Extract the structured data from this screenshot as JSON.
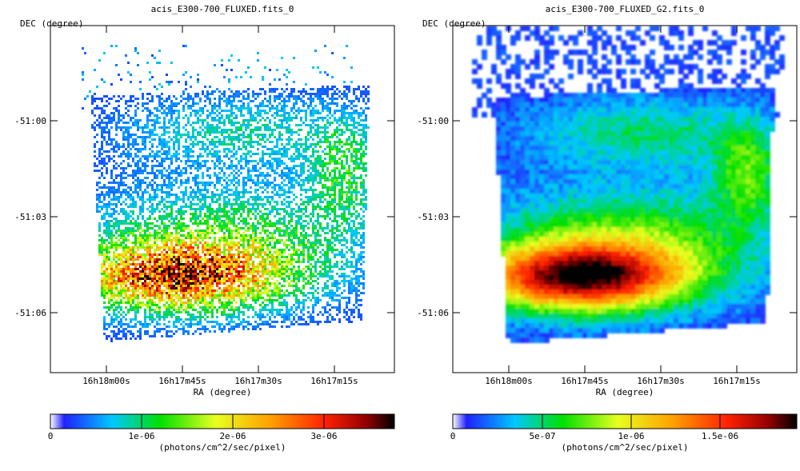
{
  "panels": [
    {
      "title": "acis_E300-700_FLUXED.fits_0",
      "y_axis_label": "DEC (degree)",
      "x_axis_label": "RA (degree)",
      "y_ticks": [
        "-51:00",
        "-51:03",
        "-51:06"
      ],
      "x_ticks": [
        "16h18m00s",
        "16h17m45s",
        "16h17m30s",
        "16h17m15s"
      ],
      "colorbar": {
        "ticks": [
          "0",
          "1e-06",
          "2e-06",
          "3e-06"
        ],
        "unit": "(photons/cm^2/sec/pixel)"
      },
      "image_style": "speckled-raw"
    },
    {
      "title": "acis_E300-700_FLUXED_G2.fits_0",
      "y_axis_label": "DEC (degree)",
      "x_axis_label": "RA (degree)",
      "y_ticks": [
        "-51:00",
        "-51:03",
        "-51:06"
      ],
      "x_ticks": [
        "16h18m00s",
        "16h17m45s",
        "16h17m30s",
        "16h17m15s"
      ],
      "colorbar": {
        "ticks": [
          "0",
          "5e-07",
          "1e-06",
          "1.5e-06"
        ],
        "unit": "(photons/cm^2/sec/pixel)"
      },
      "image_style": "smoothed"
    }
  ],
  "colormap": [
    "#ffffff",
    "#0000ff",
    "#00ffff",
    "#00ff00",
    "#ffff00",
    "#ffa500",
    "#ff0000",
    "#8b0000",
    "#000000"
  ]
}
